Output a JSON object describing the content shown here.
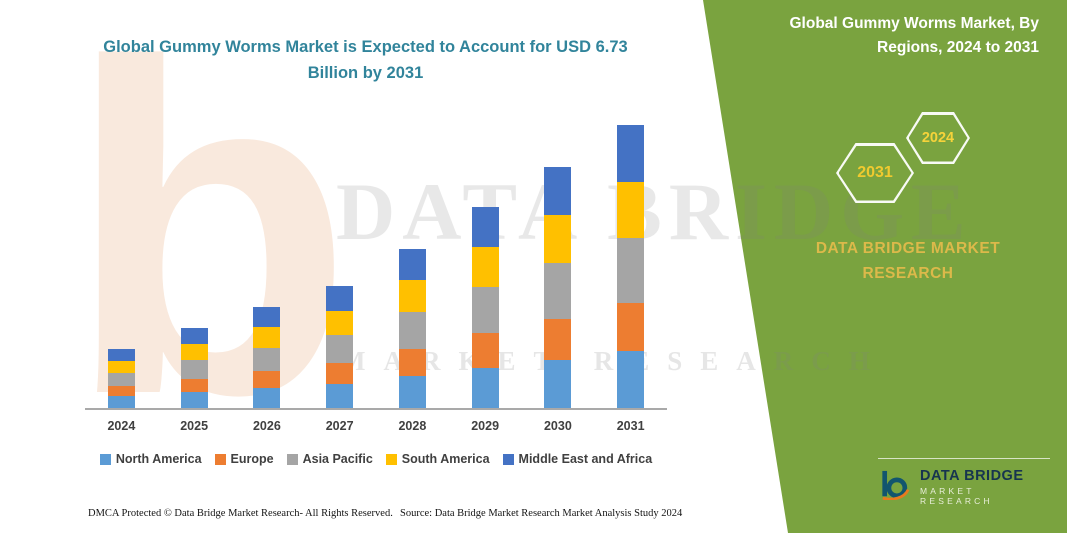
{
  "left_section": {
    "title": "Global Gummy Worms Market is Expected to Account for USD 6.73 Billion by 2031",
    "footer_dmca": "DMCA Protected © Data Bridge Market Research-  All Rights Reserved.",
    "footer_source": "Source: Data Bridge Market Research  Market Analysis Study 2024"
  },
  "chart_data": {
    "type": "bar",
    "stacked": true,
    "title": "Global Gummy Worms Market is Expected to Account for USD 6.73 Billion by 2031",
    "unit": "USD Billion",
    "categories": [
      "2024",
      "2025",
      "2026",
      "2027",
      "2028",
      "2029",
      "2030",
      "2031"
    ],
    "series": [
      {
        "name": "North America",
        "color": "#5B9BD5",
        "values": [
          0.28,
          0.38,
          0.48,
          0.58,
          0.76,
          0.96,
          1.15,
          1.35
        ]
      },
      {
        "name": "Europe",
        "color": "#ED7D31",
        "values": [
          0.24,
          0.32,
          0.41,
          0.49,
          0.65,
          0.82,
          0.98,
          1.14
        ]
      },
      {
        "name": "Asia Pacific",
        "color": "#A5A5A5",
        "values": [
          0.32,
          0.44,
          0.55,
          0.67,
          0.87,
          1.1,
          1.32,
          1.55
        ]
      },
      {
        "name": "South America",
        "color": "#FFC000",
        "values": [
          0.28,
          0.38,
          0.48,
          0.58,
          0.76,
          0.96,
          1.15,
          1.35
        ]
      },
      {
        "name": "Middle East and Africa",
        "color": "#4472C4",
        "values": [
          0.28,
          0.38,
          0.48,
          0.58,
          0.76,
          0.96,
          1.15,
          1.34
        ]
      }
    ],
    "totals": [
      1.4,
      1.9,
      2.4,
      2.9,
      3.8,
      4.8,
      5.75,
      6.73
    ],
    "ylim": [
      0,
      7
    ],
    "grid": false,
    "legend_position": "bottom"
  },
  "watermark": {
    "line1": "DATA BRIDGE",
    "line2": "MARKET RESEARCH",
    "logo_letter": "b"
  },
  "right_panel": {
    "title": "Global Gummy Worms Market, By Regions, 2024 to 2031",
    "hexagon_left": "2031",
    "hexagon_right": "2024",
    "brand_line1": "DATA BRIDGE MARKET",
    "brand_line2": "RESEARCH",
    "logo": {
      "name": "DATA BRIDGE",
      "tagline": "MARKET RESEARCH"
    },
    "colors": {
      "panel_green": "#7AA33F",
      "hex_text_yellow": "#F0CA2F",
      "brand_gold": "#DCB94A",
      "title_teal": "#31849B"
    }
  }
}
